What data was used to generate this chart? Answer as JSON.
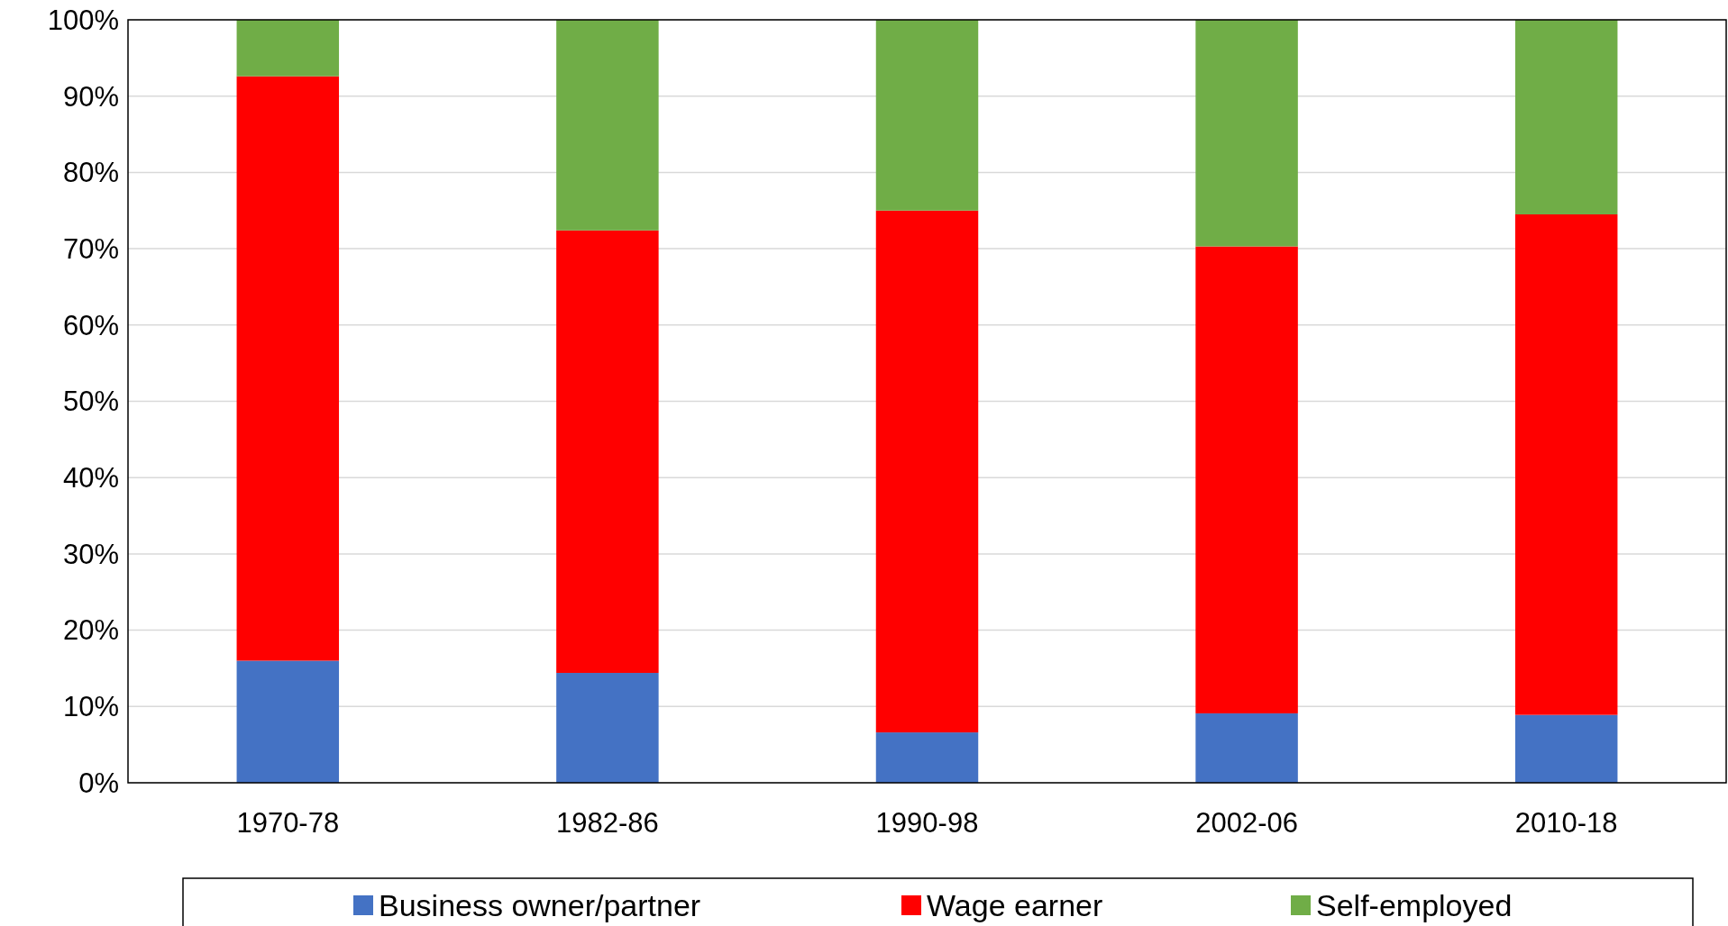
{
  "chart_data": {
    "type": "bar",
    "stacked": true,
    "categories": [
      "1970-78",
      "1982-86",
      "1990-98",
      "2002-06",
      "2010-18"
    ],
    "series": [
      {
        "name": "Business owner/partner",
        "color": "#4472c4",
        "values": [
          16.0,
          14.4,
          6.6,
          9.1,
          8.9
        ]
      },
      {
        "name": "Wage earner",
        "color": "#ff0000",
        "values": [
          76.6,
          58.0,
          68.4,
          61.2,
          65.6
        ]
      },
      {
        "name": "Self-employed",
        "color": "#70ad47",
        "values": [
          7.4,
          27.6,
          25.0,
          29.7,
          25.5
        ]
      }
    ],
    "ylim": [
      0,
      100
    ],
    "yticks": [
      {
        "value": 0,
        "label": "0%"
      },
      {
        "value": 10,
        "label": "10%"
      },
      {
        "value": 20,
        "label": "20%"
      },
      {
        "value": 30,
        "label": "30%"
      },
      {
        "value": 40,
        "label": "40%"
      },
      {
        "value": 50,
        "label": "50%"
      },
      {
        "value": 60,
        "label": "60%"
      },
      {
        "value": 70,
        "label": "70%"
      },
      {
        "value": 80,
        "label": "80%"
      },
      {
        "value": 90,
        "label": "90%"
      },
      {
        "value": 100,
        "label": "100%"
      }
    ],
    "grid": "y",
    "legend": "bottom"
  }
}
